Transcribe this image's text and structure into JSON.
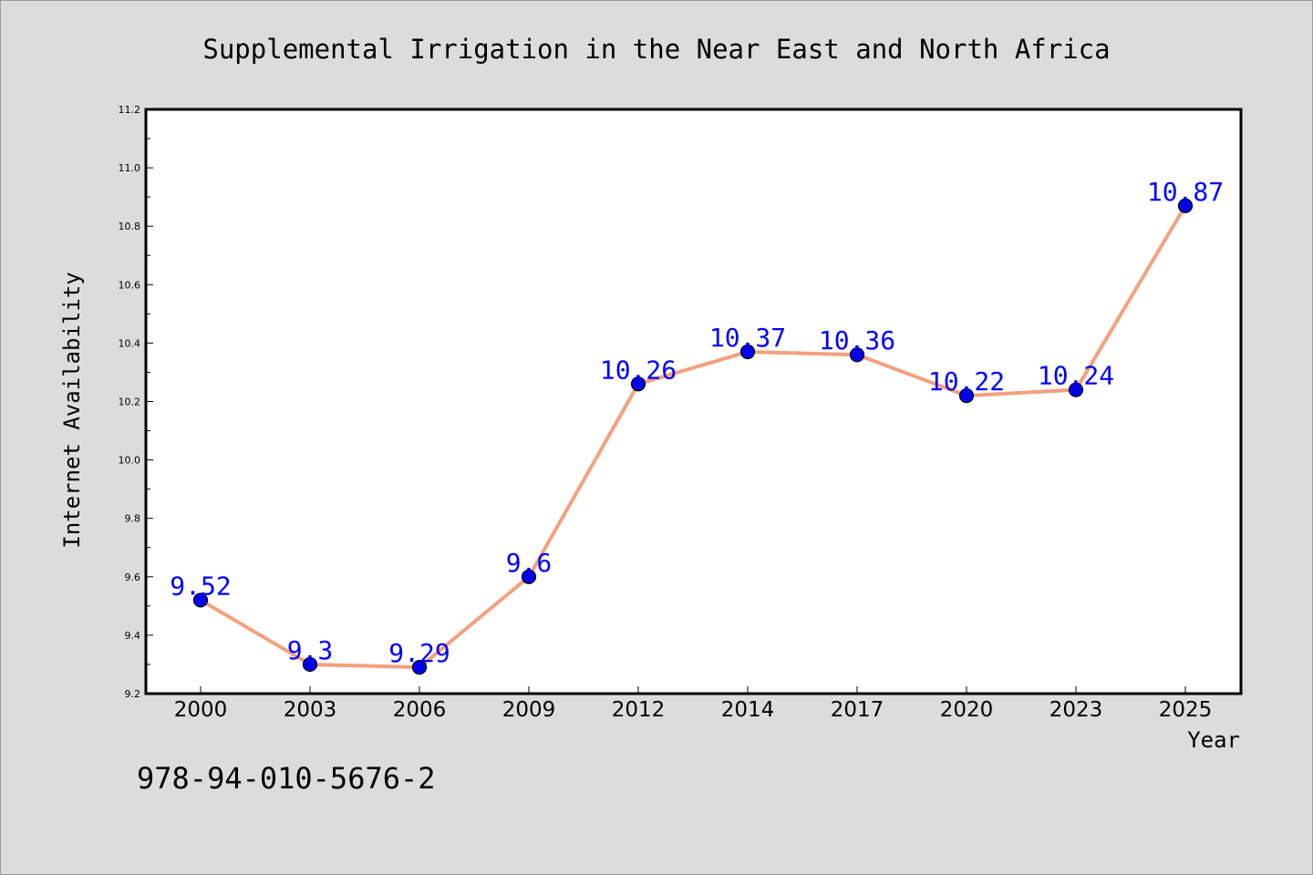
{
  "chart_data": {
    "type": "line",
    "title": "Supplemental Irrigation in the Near East and North Africa",
    "xlabel": "Year",
    "ylabel": "Internet Availability",
    "categories": [
      "2000",
      "2003",
      "2006",
      "2009",
      "2012",
      "2014",
      "2017",
      "2020",
      "2023",
      "2025"
    ],
    "values": [
      9.52,
      9.3,
      9.29,
      9.6,
      10.26,
      10.37,
      10.36,
      10.22,
      10.24,
      10.87
    ],
    "data_labels": [
      "9.52",
      "9.3",
      "9.29",
      "9.6",
      "10.26",
      "10.37",
      "10.36",
      "10.22",
      "10.24",
      "10.87"
    ],
    "ylim": [
      9.2,
      11.2
    ],
    "yticks": [
      "9.2",
      "9.4",
      "9.6",
      "9.8",
      "10.0",
      "10.2",
      "10.4",
      "10.6",
      "10.8",
      "11.0",
      "11.2"
    ],
    "grid": false,
    "legend": "none",
    "colors": {
      "line": "#f4a07e",
      "marker": "#0000ee",
      "label": "#0000ff",
      "background": "#dcdcdc",
      "plot_area": "#ffffff"
    }
  },
  "footer": {
    "isbn": "978-94-010-5676-2"
  }
}
